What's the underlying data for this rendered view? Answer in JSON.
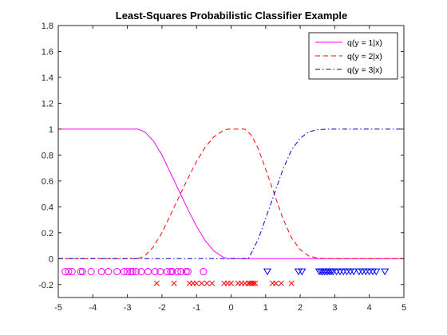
{
  "chart_data": {
    "type": "line",
    "title": "Least-Squares Probabilistic Classifier Example",
    "xlabel": "",
    "ylabel": "",
    "xlim": [
      -5,
      5
    ],
    "ylim": [
      -0.3,
      1.8
    ],
    "xticks": [
      -5,
      -4,
      -3,
      -2,
      -1,
      0,
      1,
      2,
      3,
      4,
      5
    ],
    "yticks": [
      -0.2,
      0,
      0.2,
      0.4,
      0.6,
      0.8,
      1,
      1.2,
      1.4,
      1.6,
      1.8
    ],
    "xtick_labels": [
      "-5",
      "-4",
      "-3",
      "-2",
      "-1",
      "0",
      "1",
      "2",
      "3",
      "4",
      "5"
    ],
    "ytick_labels": [
      "-0.2",
      "0",
      "0.2",
      "0.4",
      "0.6",
      "0.8",
      "1",
      "1.2",
      "1.4",
      "1.6",
      "1.8"
    ],
    "grid": false,
    "legend_position": "top-right",
    "series": [
      {
        "name": "q(y = 1|x)",
        "color": "#ff00ff",
        "style": "solid",
        "x": [
          -5,
          -4,
          -3,
          -2.7,
          -2.5,
          -2.25,
          -2,
          -1.75,
          -1.5,
          -1.25,
          -1,
          -0.75,
          -0.5,
          -0.25,
          -0.1,
          0,
          0.5,
          1,
          2,
          3,
          4,
          5
        ],
        "y": [
          1,
          1,
          1,
          1,
          0.98,
          0.91,
          0.8,
          0.66,
          0.52,
          0.38,
          0.25,
          0.14,
          0.06,
          0.015,
          0,
          0,
          0,
          0,
          0,
          0,
          0,
          0
        ]
      },
      {
        "name": "q(y = 2|x)",
        "color": "#ff0000",
        "style": "dashed",
        "x": [
          -5,
          -4,
          -3,
          -2.7,
          -2.5,
          -2.25,
          -2,
          -1.75,
          -1.5,
          -1.25,
          -1,
          -0.75,
          -0.5,
          -0.25,
          -0.1,
          0,
          0.2,
          0.4,
          0.6,
          0.8,
          1,
          1.25,
          1.5,
          1.75,
          2,
          2.25,
          2.5,
          2.75,
          3,
          4,
          5
        ],
        "y": [
          0,
          0,
          0,
          0,
          0.02,
          0.09,
          0.2,
          0.34,
          0.48,
          0.62,
          0.75,
          0.86,
          0.94,
          0.985,
          1,
          1,
          1,
          1,
          0.95,
          0.84,
          0.69,
          0.5,
          0.31,
          0.16,
          0.07,
          0.02,
          0.005,
          0,
          0,
          0,
          0
        ]
      },
      {
        "name": "q(y = 3|x)",
        "color": "#0000cc",
        "style": "dashdot",
        "x": [
          -5,
          -4,
          -3,
          -2,
          -1,
          0,
          0.5,
          0.6,
          0.8,
          1,
          1.25,
          1.5,
          1.75,
          2,
          2.25,
          2.5,
          2.75,
          3,
          4,
          5
        ],
        "y": [
          0,
          0,
          0,
          0,
          0,
          0,
          0,
          0.05,
          0.16,
          0.31,
          0.5,
          0.69,
          0.84,
          0.93,
          0.98,
          0.995,
          1,
          1,
          1,
          1
        ]
      }
    ],
    "samples": [
      {
        "class": "1",
        "marker": "circle",
        "color": "#ff00ff",
        "y": -0.1,
        "x": [
          -4.8,
          -4.7,
          -4.6,
          -4.35,
          -4.3,
          -4.05,
          -3.75,
          -3.55,
          -3.3,
          -3.1,
          -3.0,
          -2.9,
          -2.85,
          -2.75,
          -2.6,
          -2.4,
          -2.2,
          -2.05,
          -1.85,
          -1.75,
          -1.7,
          -1.55,
          -1.45,
          -1.3,
          -1.25,
          -0.8
        ]
      },
      {
        "class": "2",
        "marker": "cross",
        "color": "#ff0000",
        "y": -0.19,
        "x": [
          -2.15,
          -1.65,
          -1.2,
          -1.1,
          -1.0,
          -0.85,
          -0.7,
          -0.55,
          -0.2,
          -0.1,
          0.0,
          0.2,
          0.3,
          0.4,
          0.5,
          0.55,
          0.6,
          0.65,
          0.7,
          1.2,
          1.3,
          1.45,
          1.75
        ]
      },
      {
        "class": "3",
        "marker": "triangle-down",
        "color": "#0000ff",
        "y": -0.1,
        "x": [
          1.05,
          1.95,
          2.05,
          2.55,
          2.6,
          2.65,
          2.7,
          2.75,
          2.8,
          2.85,
          2.9,
          2.95,
          3.05,
          3.15,
          3.25,
          3.35,
          3.45,
          3.55,
          3.7,
          3.8,
          3.9,
          4.0,
          4.1,
          4.2,
          4.45
        ]
      }
    ]
  }
}
